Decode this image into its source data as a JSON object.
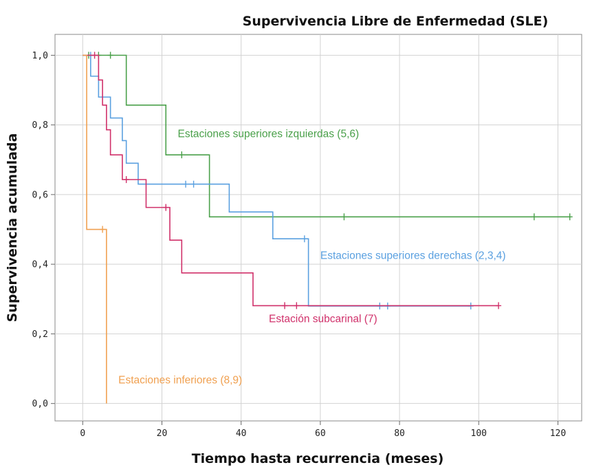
{
  "chart_data": {
    "type": "line",
    "step": true,
    "title": "Supervivencia Libre de Enfermedad (SLE)",
    "xlabel": "Tiempo hasta recurrencia (meses)",
    "ylabel": "Supervivencia acumulada",
    "xlim": [
      -7,
      126
    ],
    "ylim": [
      -0.05,
      1.06
    ],
    "xticks": [
      0,
      20,
      40,
      60,
      80,
      100,
      120
    ],
    "xtick_labels": [
      "0",
      "20",
      "40",
      "60",
      "80",
      "100",
      "120"
    ],
    "yticks": [
      0,
      0.2,
      0.4,
      0.6,
      0.8,
      1.0
    ],
    "ytick_labels": [
      "0,0",
      "0,2",
      "0,4",
      "0,6",
      "0,8",
      "1,0"
    ],
    "grid": true,
    "series": [
      {
        "name": "Estaciones superiores izquierdas (5,6)",
        "color": "#4aa04a",
        "steps": [
          [
            0,
            1.0
          ],
          [
            11,
            0.857
          ],
          [
            21,
            0.714
          ],
          [
            32,
            0.536
          ],
          [
            123,
            0.536
          ]
        ],
        "censored": [
          [
            1.5,
            1.0
          ],
          [
            4,
            1.0
          ],
          [
            7,
            1.0
          ],
          [
            25,
            0.714
          ],
          [
            66,
            0.536
          ],
          [
            114,
            0.536
          ],
          [
            123,
            0.536
          ]
        ]
      },
      {
        "name": "Estaciones superiores derechas  (2,3,4)",
        "color": "#5aa0e0",
        "steps": [
          [
            0,
            1.0
          ],
          [
            2,
            0.94
          ],
          [
            4,
            0.88
          ],
          [
            7,
            0.82
          ],
          [
            10,
            0.755
          ],
          [
            11,
            0.69
          ],
          [
            14,
            0.63
          ],
          [
            37,
            0.55
          ],
          [
            48,
            0.473
          ],
          [
            57,
            0.28
          ],
          [
            98,
            0.28
          ]
        ],
        "censored": [
          [
            2,
            1.0
          ],
          [
            26,
            0.63
          ],
          [
            28,
            0.63
          ],
          [
            56,
            0.473
          ],
          [
            75,
            0.28
          ],
          [
            77,
            0.28
          ],
          [
            98,
            0.28
          ]
        ]
      },
      {
        "name": "Estación subcarinal (7)",
        "color": "#d0306a",
        "steps": [
          [
            0,
            1.0
          ],
          [
            4,
            0.929
          ],
          [
            5,
            0.857
          ],
          [
            6,
            0.786
          ],
          [
            7,
            0.714
          ],
          [
            10,
            0.643
          ],
          [
            16,
            0.563
          ],
          [
            22,
            0.469
          ],
          [
            25,
            0.375
          ],
          [
            43,
            0.281
          ],
          [
            105,
            0.281
          ]
        ],
        "censored": [
          [
            3,
            1.0
          ],
          [
            11,
            0.643
          ],
          [
            21,
            0.563
          ],
          [
            51,
            0.281
          ],
          [
            54,
            0.281
          ],
          [
            105,
            0.281
          ]
        ]
      },
      {
        "name": "Estaciones inferiores (8,9)",
        "color": "#f0a050",
        "steps": [
          [
            0,
            1.0
          ],
          [
            1,
            0.5
          ],
          [
            6,
            0.0
          ]
        ],
        "censored": [
          [
            5,
            0.5
          ]
        ]
      }
    ],
    "annotations": [
      {
        "text": "Estaciones superiores izquierdas (5,6)",
        "series": 0,
        "x": 24,
        "y": 0.765
      },
      {
        "text": "Estaciones superiores derechas  (2,3,4)",
        "series": 1,
        "x": 60,
        "y": 0.415
      },
      {
        "text": "Estación subcarinal (7)",
        "series": 2,
        "x": 47,
        "y": 0.233
      },
      {
        "text": "Estaciones inferiores (8,9)",
        "series": 3,
        "x": 9,
        "y": 0.058
      }
    ]
  }
}
